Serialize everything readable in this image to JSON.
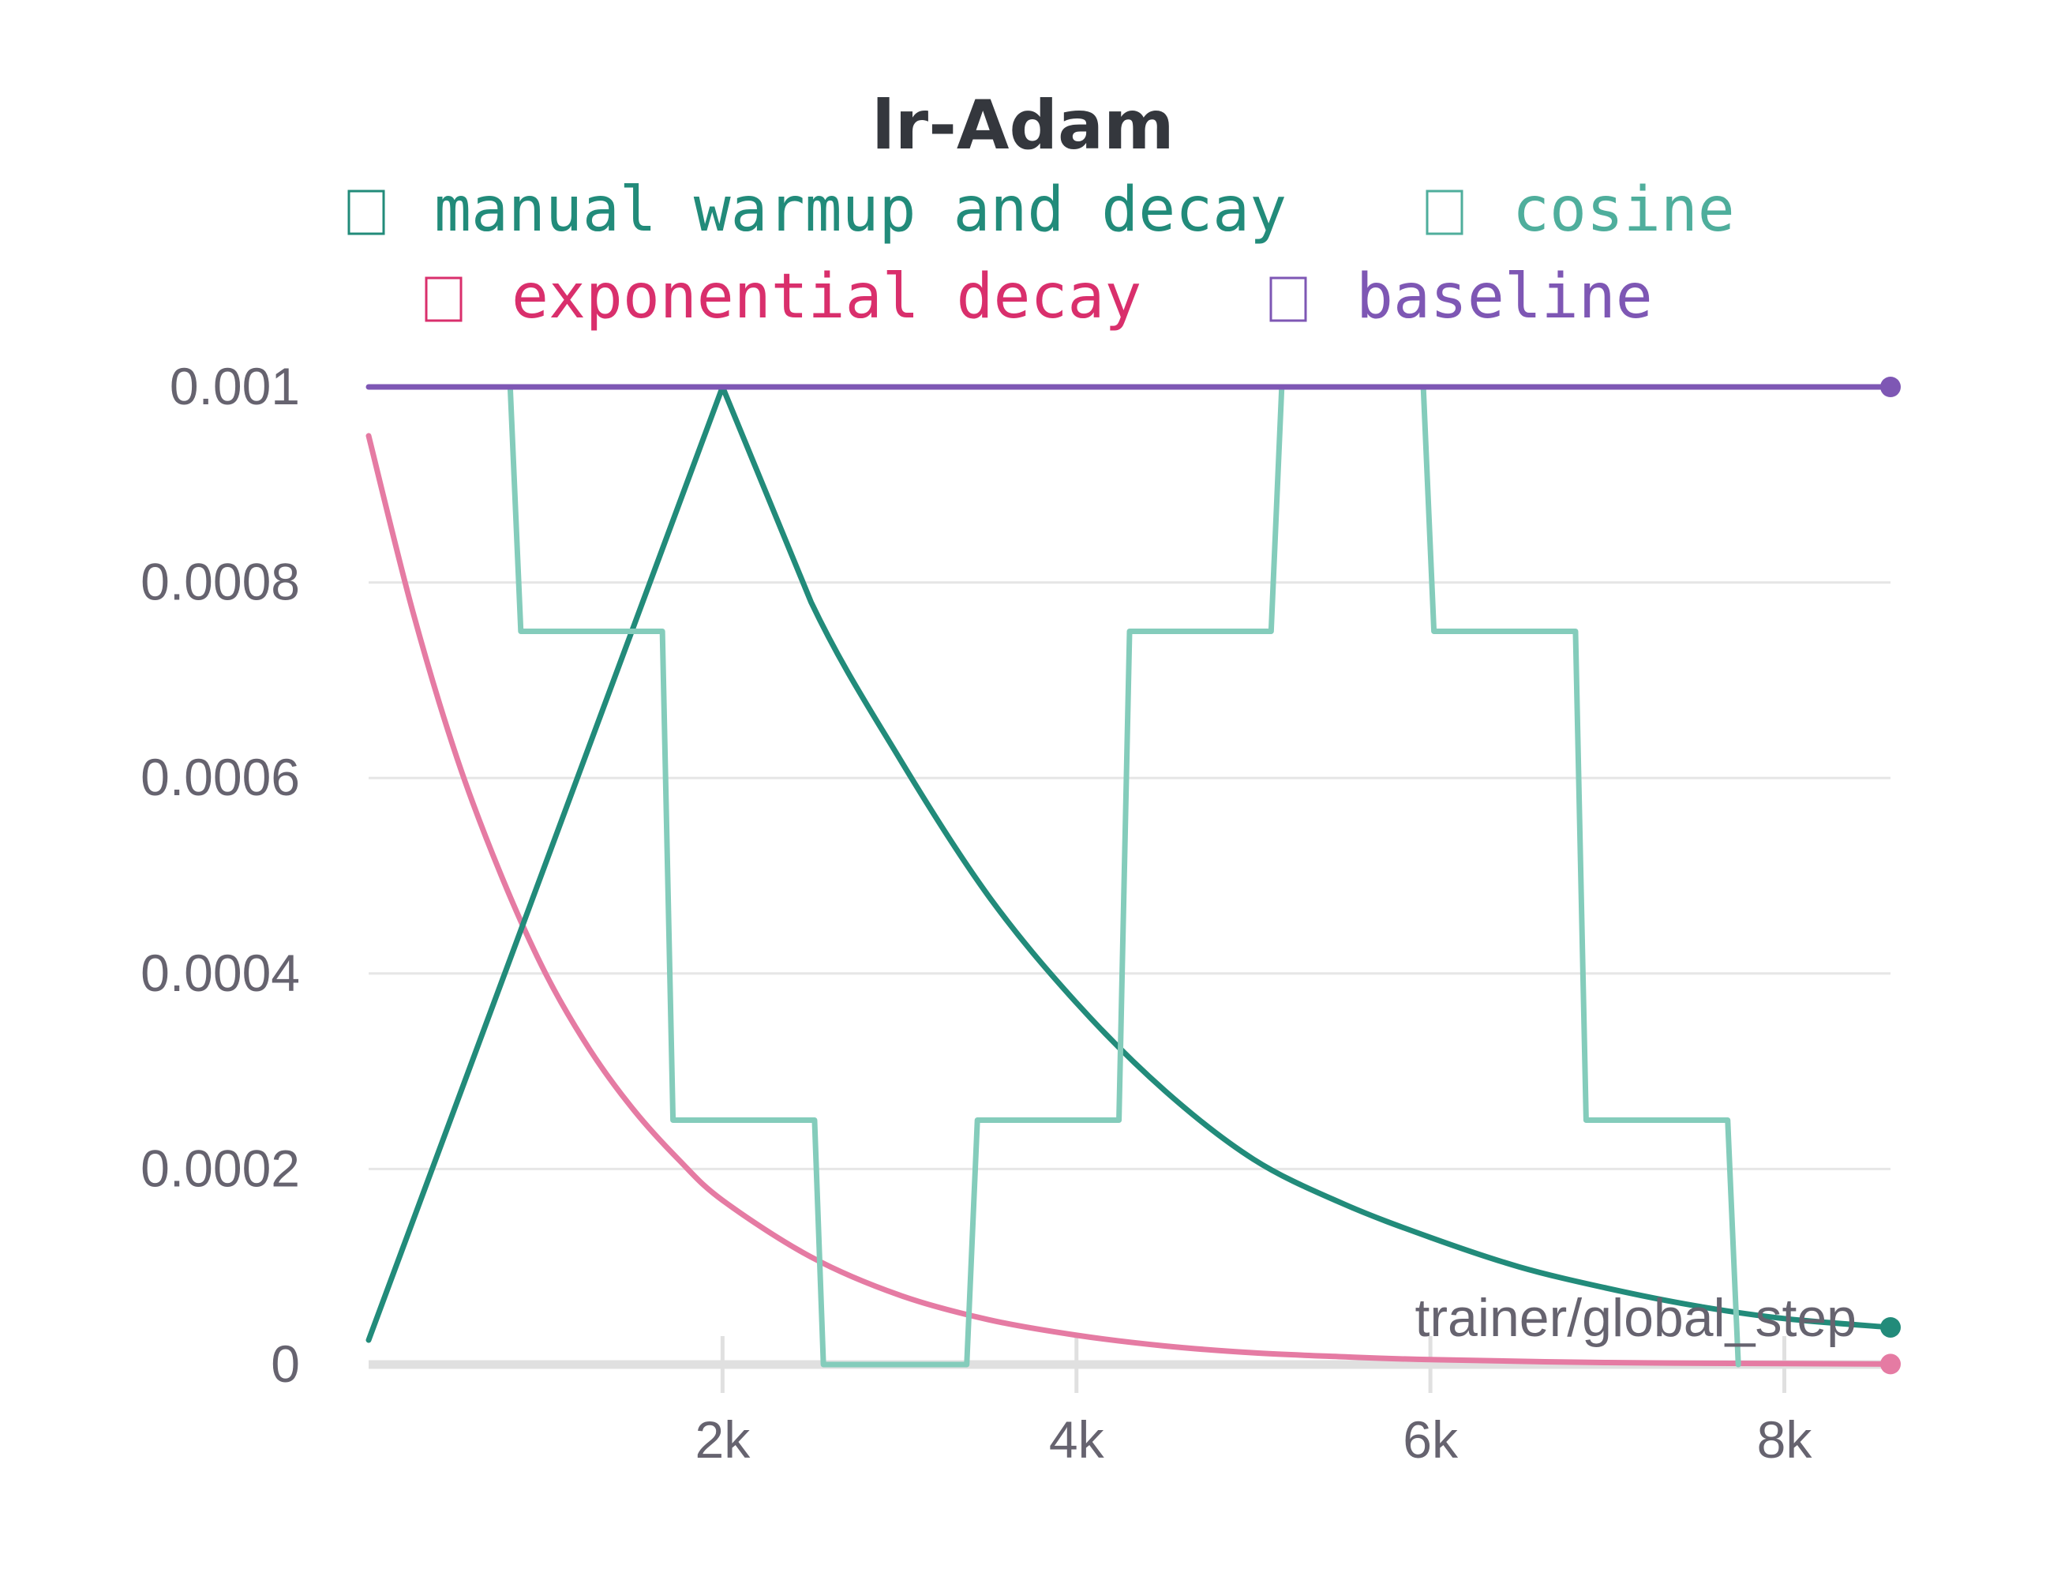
{
  "chart_data": {
    "type": "line",
    "title": "lr-Adam",
    "xlabel": "trainer/global_step",
    "ylabel": "",
    "xlim": [
      0,
      8600
    ],
    "ylim": [
      0,
      0.001
    ],
    "x_ticks": [
      {
        "value": 2000,
        "label": "2k"
      },
      {
        "value": 4000,
        "label": "4k"
      },
      {
        "value": 6000,
        "label": "6k"
      },
      {
        "value": 8000,
        "label": "8k"
      }
    ],
    "y_ticks": [
      {
        "value": 0,
        "label": "0"
      },
      {
        "value": 0.0002,
        "label": "0.0002"
      },
      {
        "value": 0.0004,
        "label": "0.0004"
      },
      {
        "value": 0.0006,
        "label": "0.0006"
      },
      {
        "value": 0.0008,
        "label": "0.0008"
      },
      {
        "value": 0.001,
        "label": "0.001"
      }
    ],
    "grid": true,
    "legend_position": "top",
    "series": [
      {
        "name": "manual warmup and decay",
        "color": "#228b7a",
        "width": 7,
        "end_marker": true,
        "x": [
          0,
          2000,
          2500,
          3000,
          3500,
          4000,
          4500,
          5000,
          5500,
          6000,
          6500,
          7000,
          7500,
          8000,
          8600
        ],
        "y": [
          2.5e-05,
          0.001,
          0.00078,
          0.00062,
          0.00048,
          0.00037,
          0.00028,
          0.00021,
          0.000165,
          0.00013,
          0.0001,
          7.8e-05,
          6e-05,
          4.7e-05,
          3.8e-05
        ]
      },
      {
        "name": "cosine",
        "color": "#84ccbb",
        "width": 6,
        "end_marker": false,
        "x": [
          800,
          860,
          1660,
          1720,
          2520,
          2570,
          3380,
          3440,
          4240,
          4300,
          5100,
          5160,
          5960,
          6020,
          6820,
          6880,
          7680,
          7740
        ],
        "y": [
          0.001,
          0.00075,
          0.00075,
          0.00025,
          0.00025,
          0,
          0,
          0.00025,
          0.00025,
          0.00075,
          0.00075,
          0.001,
          0.001,
          0.00075,
          0.00075,
          0.00025,
          0.00025,
          0
        ]
      },
      {
        "name": "exponential decay",
        "color": "#e57ba3",
        "width": 7,
        "end_marker": true,
        "x": [
          0,
          250,
          500,
          750,
          1000,
          1250,
          1500,
          1750,
          2000,
          2500,
          3000,
          3500,
          4000,
          4500,
          5000,
          5500,
          6000,
          7000,
          8000,
          8600
        ],
        "y": [
          0.00095,
          0.00077,
          0.00062,
          0.0005,
          0.0004,
          0.000322,
          0.00026,
          0.00021,
          0.000168,
          0.00011,
          7.1e-05,
          4.6e-05,
          3e-05,
          1.9e-05,
          1.2e-05,
          8e-06,
          5e-06,
          2e-06,
          1e-06,
          5e-07
        ]
      },
      {
        "name": "baseline",
        "color": "#7e57b4",
        "width": 7,
        "end_marker": true,
        "x": [
          0,
          8600
        ],
        "y": [
          0.001,
          0.001
        ]
      }
    ],
    "legend_text_colors": [
      "#228b7a",
      "#4fae9c",
      "#d92f6c",
      "#7e57b4"
    ]
  }
}
